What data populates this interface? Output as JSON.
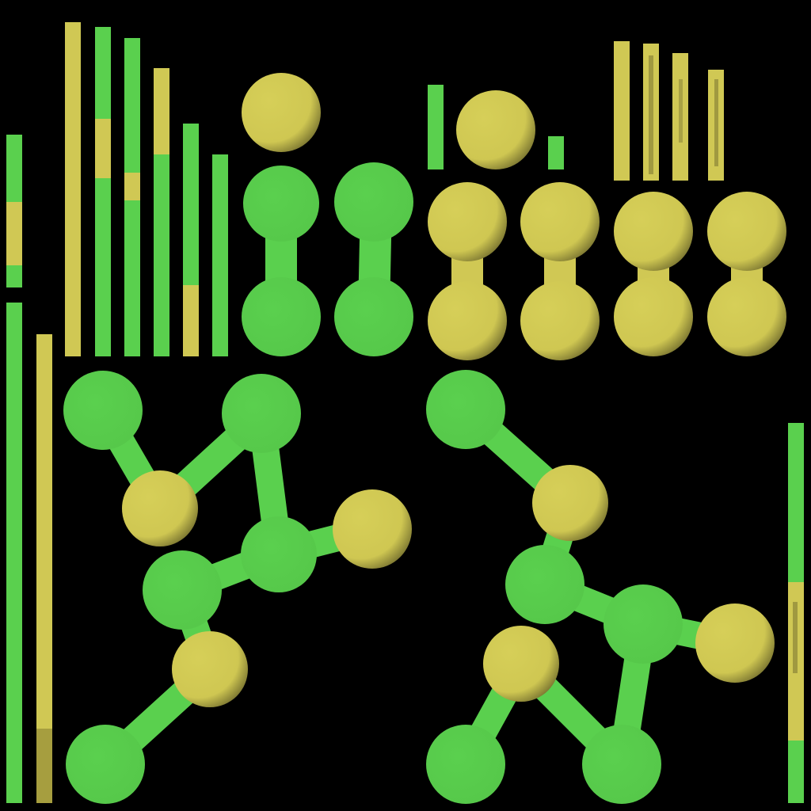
{
  "colors": {
    "background": "#000000",
    "green": "#5ad04e",
    "yellow": "#d0c854",
    "shade": "#5a5524"
  },
  "atlas": {
    "content": "texture-atlas-green-yellow-bars-and-ball-stick-molecules",
    "has_text": false
  }
}
